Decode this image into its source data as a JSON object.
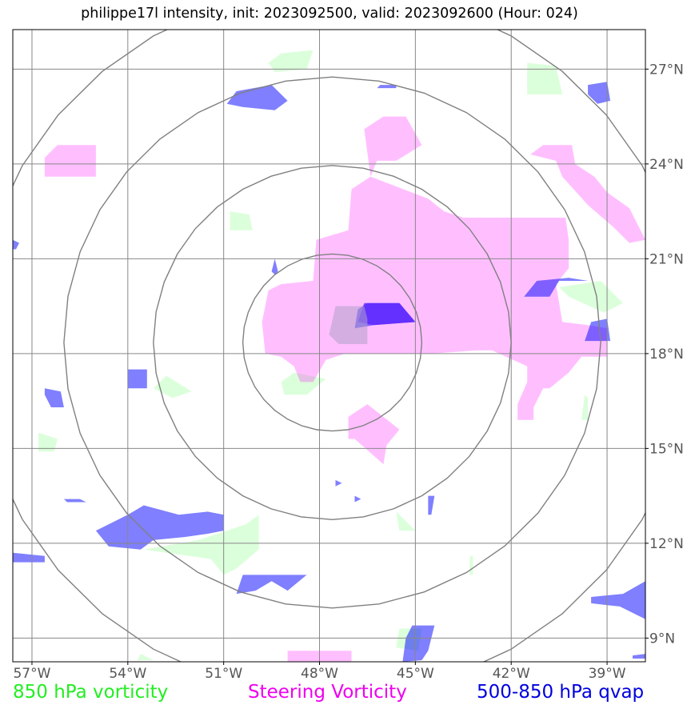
{
  "title": "philippe17l intensity, init: 2023092500, valid: 2023092600 (Hour: 024)",
  "colors": {
    "vort850": "#00ff00",
    "steering": "#ff00ff",
    "qvap": "#0000ff",
    "grid": "#888888"
  },
  "legend": [
    {
      "label": "850 hPa vorticity",
      "color": "#22ee22"
    },
    {
      "label": "Steering Vorticity",
      "color": "#ee00ee"
    },
    {
      "label": "500-850 hPa qvap",
      "color": "#0000dd"
    }
  ],
  "map": {
    "lon_range": [
      -57.6,
      -37.8
    ],
    "lat_range": [
      8.25,
      28.25
    ],
    "lon_ticks": [
      {
        "value": -57,
        "label": "57°W"
      },
      {
        "value": -54,
        "label": "54°W"
      },
      {
        "value": -51,
        "label": "51°W"
      },
      {
        "value": -48,
        "label": "48°W"
      },
      {
        "value": -45,
        "label": "45°W"
      },
      {
        "value": -42,
        "label": "42°W"
      },
      {
        "value": -39,
        "label": "39°W"
      }
    ],
    "lat_ticks": [
      {
        "value": 9,
        "label": "9°N"
      },
      {
        "value": 12,
        "label": "12°N"
      },
      {
        "value": 15,
        "label": "15°N"
      },
      {
        "value": 18,
        "label": "18°N"
      },
      {
        "value": 21,
        "label": "21°N"
      },
      {
        "value": 24,
        "label": "24°N"
      },
      {
        "value": 27,
        "label": "27°N"
      }
    ],
    "storm_center": {
      "lon": -47.6,
      "lat": 18.35
    },
    "range_rings_deg": [
      2.8,
      5.6,
      8.4,
      11.2
    ]
  },
  "layers": {
    "vort850": [
      [
        [
          -49.2,
          27.5
        ],
        [
          -48.2,
          27.6
        ],
        [
          -48.4,
          27.0
        ],
        [
          -49.4,
          26.9
        ],
        [
          -49.6,
          27.2
        ]
      ],
      [
        [
          -41.5,
          27.2
        ],
        [
          -40.6,
          27.1
        ],
        [
          -40.4,
          26.2
        ],
        [
          -41.5,
          26.2
        ]
      ],
      [
        [
          -50.8,
          22.5
        ],
        [
          -50.2,
          22.4
        ],
        [
          -50.1,
          21.9
        ],
        [
          -50.8,
          21.9
        ]
      ],
      [
        [
          -40.5,
          20.1
        ],
        [
          -39.2,
          20.3
        ],
        [
          -38.5,
          19.6
        ],
        [
          -39.1,
          19.3
        ],
        [
          -40.2,
          19.8
        ]
      ],
      [
        [
          -52.8,
          17.3
        ],
        [
          -52.0,
          16.8
        ],
        [
          -52.6,
          16.6
        ],
        [
          -53.2,
          16.9
        ]
      ],
      [
        [
          -48.8,
          17.4
        ],
        [
          -47.8,
          17.2
        ],
        [
          -48.4,
          16.7
        ],
        [
          -49.1,
          16.7
        ],
        [
          -49.2,
          17.1
        ]
      ],
      [
        [
          -56.8,
          15.5
        ],
        [
          -56.2,
          15.3
        ],
        [
          -56.3,
          14.9
        ],
        [
          -56.8,
          14.9
        ]
      ],
      [
        [
          -39.7,
          16.7
        ],
        [
          -39.6,
          16.6
        ],
        [
          -39.6,
          15.9
        ],
        [
          -39.8,
          15.9
        ]
      ],
      [
        [
          -50.3,
          12.6
        ],
        [
          -49.9,
          12.9
        ],
        [
          -49.9,
          11.8
        ],
        [
          -50.6,
          11.2
        ],
        [
          -51.0,
          11.0
        ],
        [
          -51.4,
          11.5
        ],
        [
          -53.5,
          11.8
        ],
        [
          -51.8,
          12.1
        ]
      ],
      [
        [
          -45.6,
          13.0
        ],
        [
          -45.0,
          12.4
        ],
        [
          -45.5,
          12.4
        ]
      ],
      [
        [
          -43.3,
          11.6
        ],
        [
          -43.2,
          11.6
        ],
        [
          -43.2,
          11.0
        ],
        [
          -43.3,
          11.0
        ]
      ],
      [
        [
          -45.5,
          9.3
        ],
        [
          -44.8,
          9.3
        ],
        [
          -44.9,
          8.6
        ],
        [
          -45.6,
          8.7
        ]
      ],
      [
        [
          -53.6,
          8.5
        ],
        [
          -53.2,
          8.3
        ],
        [
          -53.7,
          8.3
        ]
      ]
    ],
    "steering": [
      [
        [
          -49.2,
          20.2
        ],
        [
          -48.2,
          20.3
        ],
        [
          -48.1,
          21.6
        ],
        [
          -47.1,
          21.9
        ],
        [
          -47.0,
          23.2
        ],
        [
          -46.4,
          23.6
        ],
        [
          -46.6,
          25.1
        ],
        [
          -46.0,
          25.5
        ],
        [
          -45.3,
          25.5
        ],
        [
          -44.8,
          24.6
        ],
        [
          -45.6,
          24.1
        ],
        [
          -46.2,
          24.1
        ],
        [
          -46.4,
          23.6
        ],
        [
          -44.6,
          22.9
        ],
        [
          -44.1,
          22.5
        ],
        [
          -43.5,
          22.3
        ],
        [
          -42.5,
          22.3
        ],
        [
          -40.3,
          22.3
        ],
        [
          -40.2,
          21.6
        ],
        [
          -40.2,
          20.7
        ],
        [
          -40.6,
          20.2
        ],
        [
          -40.4,
          19.0
        ],
        [
          -39.6,
          18.9
        ],
        [
          -39.0,
          18.8
        ],
        [
          -39.0,
          17.9
        ],
        [
          -39.8,
          17.9
        ],
        [
          -40.2,
          17.4
        ],
        [
          -40.8,
          16.9
        ],
        [
          -41.0,
          16.9
        ],
        [
          -41.3,
          16.3
        ],
        [
          -41.3,
          15.9
        ],
        [
          -41.8,
          15.9
        ],
        [
          -41.8,
          16.4
        ],
        [
          -41.5,
          17.1
        ],
        [
          -41.5,
          17.6
        ],
        [
          -42.6,
          18.1
        ],
        [
          -43.1,
          18.1
        ],
        [
          -44.5,
          18.0
        ],
        [
          -45.5,
          18.0
        ],
        [
          -46.2,
          18.0
        ],
        [
          -47.2,
          18.0
        ],
        [
          -47.8,
          17.8
        ],
        [
          -48.2,
          17.1
        ],
        [
          -48.6,
          17.1
        ],
        [
          -48.8,
          17.6
        ],
        [
          -49.2,
          17.9
        ],
        [
          -49.7,
          18.0
        ],
        [
          -49.8,
          19.0
        ],
        [
          -49.6,
          20.0
        ]
      ],
      [
        [
          -41.0,
          24.6
        ],
        [
          -40.1,
          24.6
        ],
        [
          -40.0,
          24.0
        ],
        [
          -39.4,
          23.6
        ],
        [
          -39.0,
          23.1
        ],
        [
          -38.3,
          22.6
        ],
        [
          -37.8,
          21.6
        ],
        [
          -38.3,
          21.5
        ],
        [
          -38.8,
          22.0
        ],
        [
          -39.6,
          22.7
        ],
        [
          -40.4,
          23.6
        ],
        [
          -40.6,
          24.1
        ],
        [
          -41.4,
          24.3
        ]
      ],
      [
        [
          -56.2,
          24.6
        ],
        [
          -55.0,
          24.6
        ],
        [
          -55.0,
          23.6
        ],
        [
          -56.6,
          23.6
        ],
        [
          -56.6,
          24.2
        ]
      ],
      [
        [
          -46.5,
          16.4
        ],
        [
          -45.5,
          15.6
        ],
        [
          -45.9,
          15.1
        ],
        [
          -46.0,
          14.5
        ],
        [
          -46.9,
          15.3
        ],
        [
          -47.1,
          15.3
        ],
        [
          -47.1,
          16.0
        ]
      ],
      [
        [
          -49.0,
          8.6
        ],
        [
          -47.0,
          8.6
        ],
        [
          -47.0,
          8.25
        ],
        [
          -49.0,
          8.25
        ]
      ]
    ],
    "qvap": [
      [
        [
          -50.6,
          26.3
        ],
        [
          -49.5,
          26.5
        ],
        [
          -49.0,
          26.0
        ],
        [
          -49.4,
          25.7
        ],
        [
          -50.4,
          25.8
        ],
        [
          -50.9,
          25.9
        ]
      ],
      [
        [
          -46.1,
          26.5
        ],
        [
          -45.6,
          26.5
        ],
        [
          -45.6,
          26.4
        ],
        [
          -46.2,
          26.4
        ]
      ],
      [
        [
          -39.6,
          26.5
        ],
        [
          -39.0,
          26.6
        ],
        [
          -38.9,
          26.0
        ],
        [
          -39.3,
          25.9
        ],
        [
          -39.6,
          26.2
        ]
      ],
      [
        [
          -49.4,
          21.0
        ],
        [
          -49.3,
          20.6
        ],
        [
          -49.4,
          20.5
        ],
        [
          -49.5,
          20.6
        ]
      ],
      [
        [
          -41.2,
          20.3
        ],
        [
          -40.2,
          20.4
        ],
        [
          -39.6,
          20.3
        ],
        [
          -40.5,
          20.3
        ],
        [
          -40.8,
          19.8
        ],
        [
          -41.6,
          19.8
        ]
      ],
      [
        [
          -39.5,
          19.0
        ],
        [
          -39.0,
          19.1
        ],
        [
          -38.9,
          18.4
        ],
        [
          -39.7,
          18.4
        ]
      ],
      [
        [
          -46.5,
          19.6
        ],
        [
          -45.5,
          19.6
        ],
        [
          -45.0,
          19.0
        ],
        [
          -46.3,
          18.9
        ],
        [
          -46.9,
          18.8
        ],
        [
          -46.8,
          19.4
        ]
      ],
      [
        [
          -57.6,
          21.6
        ],
        [
          -57.4,
          21.5
        ],
        [
          -57.5,
          21.3
        ],
        [
          -57.6,
          21.3
        ]
      ],
      [
        [
          -54.0,
          17.5
        ],
        [
          -53.4,
          17.5
        ],
        [
          -53.4,
          16.9
        ],
        [
          -54.0,
          16.9
        ]
      ],
      [
        [
          -56.6,
          16.9
        ],
        [
          -56.1,
          16.8
        ],
        [
          -56.0,
          16.3
        ],
        [
          -56.4,
          16.3
        ],
        [
          -56.6,
          16.7
        ]
      ],
      [
        [
          -47.5,
          14.0
        ],
        [
          -47.3,
          13.9
        ],
        [
          -47.5,
          13.8
        ]
      ],
      [
        [
          -56.0,
          13.4
        ],
        [
          -55.5,
          13.4
        ],
        [
          -55.3,
          13.3
        ],
        [
          -55.9,
          13.3
        ]
      ],
      [
        [
          -46.9,
          13.5
        ],
        [
          -46.7,
          13.4
        ],
        [
          -46.9,
          13.3
        ]
      ],
      [
        [
          -44.6,
          13.5
        ],
        [
          -44.4,
          13.5
        ],
        [
          -44.5,
          12.9
        ],
        [
          -44.6,
          12.9
        ]
      ],
      [
        [
          -53.5,
          13.2
        ],
        [
          -52.4,
          12.9
        ],
        [
          -51.5,
          13.0
        ],
        [
          -51.0,
          12.9
        ],
        [
          -51.0,
          12.4
        ],
        [
          -51.5,
          12.3
        ],
        [
          -52.2,
          12.2
        ],
        [
          -53.2,
          12.1
        ],
        [
          -53.6,
          11.8
        ],
        [
          -54.6,
          11.9
        ],
        [
          -55.0,
          12.4
        ],
        [
          -54.0,
          12.9
        ]
      ],
      [
        [
          -57.6,
          11.7
        ],
        [
          -56.6,
          11.6
        ],
        [
          -56.6,
          11.4
        ],
        [
          -57.6,
          11.4
        ]
      ],
      [
        [
          -50.4,
          11.0
        ],
        [
          -49.2,
          11.0
        ],
        [
          -48.4,
          11.0
        ],
        [
          -49.0,
          10.5
        ],
        [
          -49.5,
          10.8
        ],
        [
          -50.0,
          10.5
        ],
        [
          -50.6,
          10.4
        ]
      ],
      [
        [
          -45.1,
          9.4
        ],
        [
          -44.4,
          9.4
        ],
        [
          -44.6,
          8.6
        ],
        [
          -44.8,
          8.3
        ],
        [
          -45.4,
          8.25
        ],
        [
          -45.3,
          9.0
        ]
      ],
      [
        [
          -39.5,
          10.3
        ],
        [
          -38.5,
          10.4
        ],
        [
          -37.8,
          10.8
        ],
        [
          -37.8,
          9.6
        ],
        [
          -38.6,
          10.0
        ],
        [
          -39.5,
          10.1
        ]
      ],
      [
        [
          -38.2,
          8.45
        ],
        [
          -37.8,
          8.5
        ],
        [
          -37.8,
          8.35
        ],
        [
          -38.2,
          8.35
        ]
      ]
    ],
    "dark_core": [
      [
        [
          -46.6,
          19.6
        ],
        [
          -45.5,
          19.6
        ],
        [
          -45.0,
          19.0
        ],
        [
          -46.3,
          18.9
        ],
        [
          -46.8,
          19.0
        ]
      ]
    ],
    "grey_box": [
      [
        [
          -47.5,
          19.5
        ],
        [
          -46.6,
          19.5
        ],
        [
          -46.5,
          19.1
        ],
        [
          -46.5,
          18.3
        ],
        [
          -47.4,
          18.3
        ],
        [
          -47.7,
          18.6
        ]
      ]
    ]
  }
}
